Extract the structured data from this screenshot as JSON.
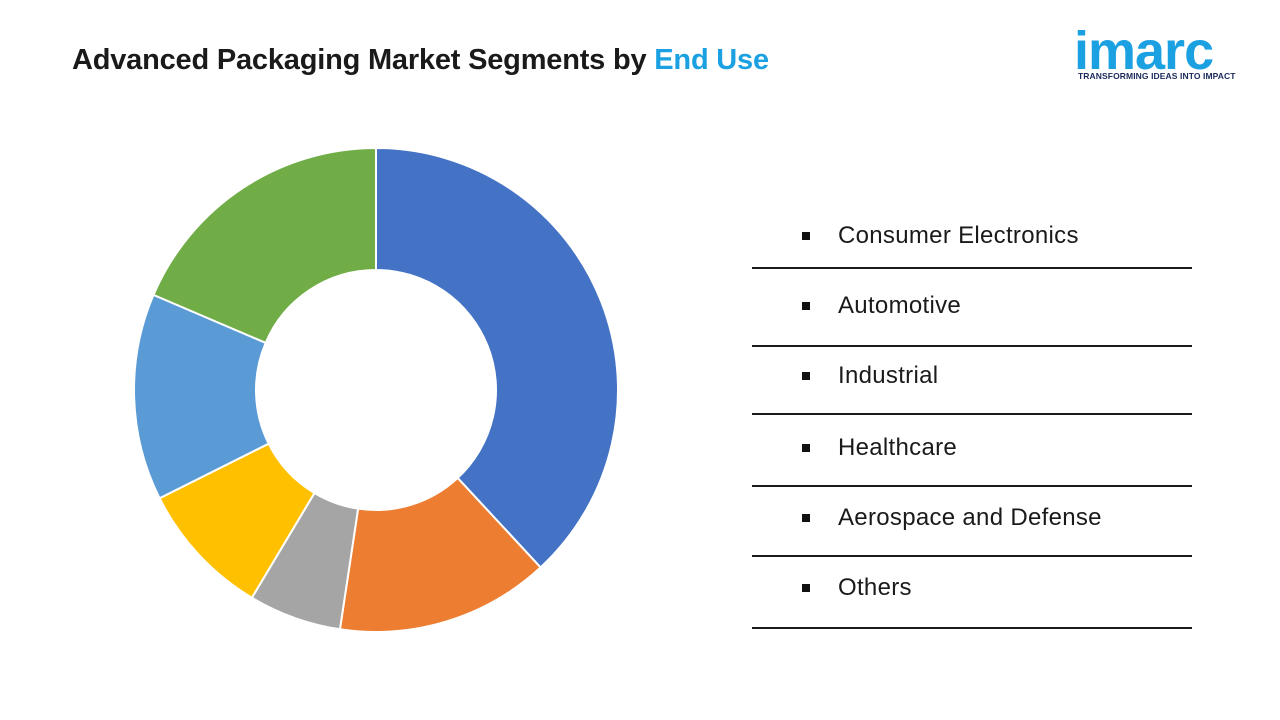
{
  "header": {
    "title_main": "Advanced Packaging Market Segments by",
    "title_highlight": "End Use"
  },
  "logo": {
    "word": "imarc",
    "tagline": "TRANSFORMING IDEAS INTO IMPACT"
  },
  "colors": {
    "accent": "#1ba1e2"
  },
  "chart_data": {
    "type": "pie",
    "subtype": "donut",
    "title": "Advanced Packaging Market Segments by End Use",
    "categories": [
      "Consumer Electronics",
      "Automotive",
      "Industrial",
      "Healthcare",
      "Aerospace and Defense",
      "Others"
    ],
    "values": [
      40.0,
      15.0,
      6.5,
      9.5,
      14.5,
      19.5
    ],
    "colors": [
      "#4472c4",
      "#ed7d31",
      "#a5a5a5",
      "#ffc000",
      "#5b9bd5",
      "#70ad47"
    ],
    "legend_position": "right",
    "data_labels": false
  }
}
